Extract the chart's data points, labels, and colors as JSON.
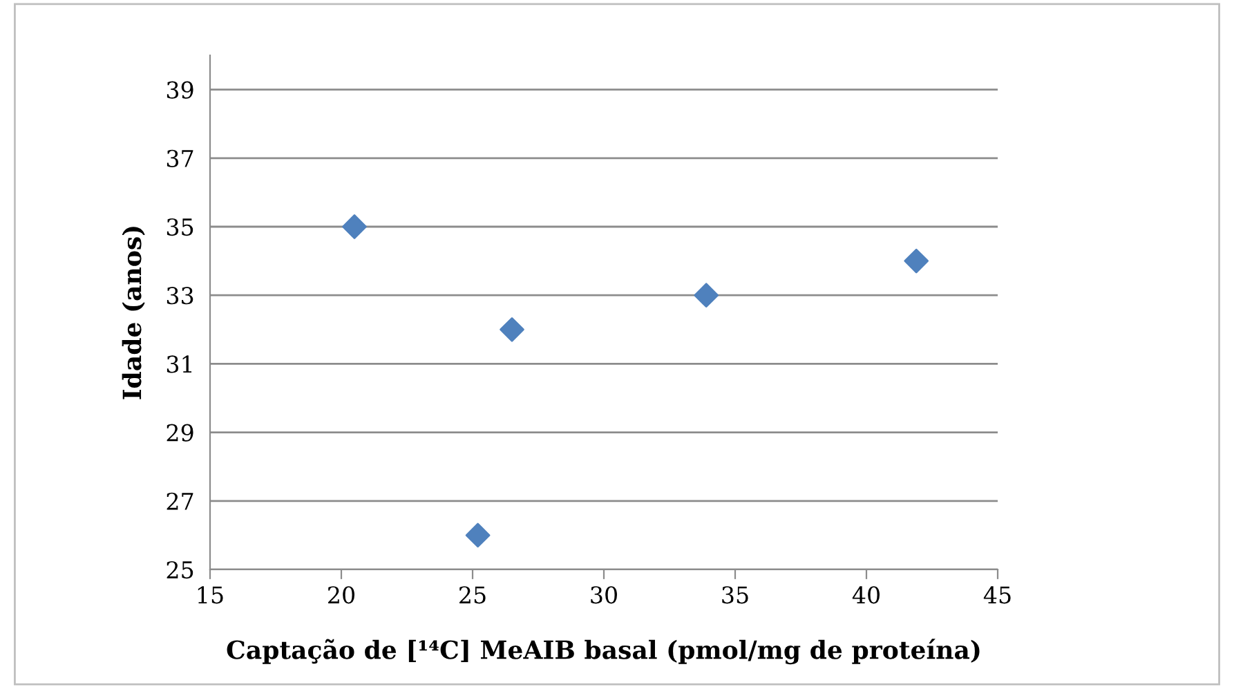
{
  "chart_data": {
    "type": "scatter",
    "xlabel": "Captação de [¹⁴C] MeAIB basal (pmol/mg de proteína)",
    "ylabel": "Idade (anos)",
    "x": [
      20.5,
      25.2,
      26.5,
      33.9,
      41.9
    ],
    "series": [
      {
        "color": "#4f81bd",
        "values": [
          35,
          26,
          32,
          33,
          34
        ]
      }
    ],
    "xlim": [
      15,
      45
    ],
    "xticks": [
      15,
      20,
      25,
      30,
      35,
      40,
      45
    ],
    "ylim": [
      25,
      40
    ],
    "yticks": [
      25,
      27,
      29,
      31,
      33,
      35,
      37,
      39
    ],
    "grid": "y",
    "marker": "diamond",
    "legend": false
  }
}
